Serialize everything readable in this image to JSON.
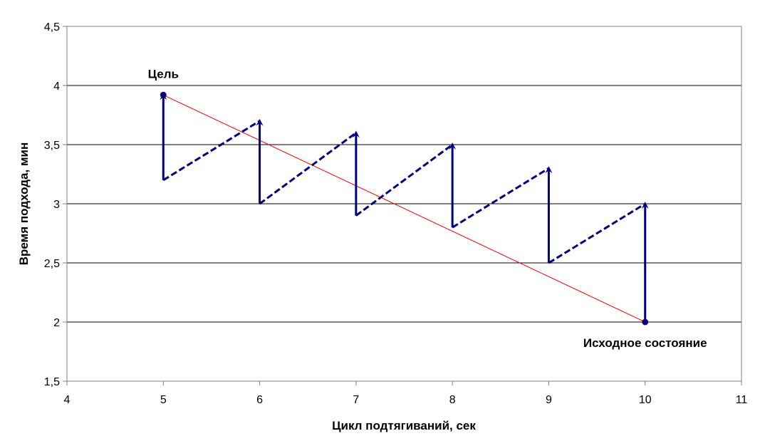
{
  "chart_data": {
    "type": "line",
    "title": "",
    "xlabel": "Цикл подтягиваний, сек",
    "ylabel": "Время подхода, мин",
    "xlim": [
      4,
      11
    ],
    "ylim": [
      1.5,
      4.5
    ],
    "x_ticks": [
      4,
      5,
      6,
      7,
      8,
      9,
      10,
      11
    ],
    "y_ticks": [
      1.5,
      2,
      2.5,
      3,
      3.5,
      4,
      4.5
    ],
    "x_tick_labels": [
      "4",
      "5",
      "6",
      "7",
      "8",
      "9",
      "10",
      "11"
    ],
    "y_tick_labels": [
      "1,5",
      "2",
      "2,5",
      "3",
      "3,5",
      "4",
      "4,5"
    ],
    "grid": "horizontal",
    "legend": "none",
    "colors": {
      "trend": "#ff0000",
      "path": "#000080",
      "grid": "#000000",
      "axis": "#808080"
    },
    "series": [
      {
        "style": "solid-thin",
        "color": "#ff0000",
        "points": [
          [
            5,
            3.92
          ],
          [
            10,
            2.0
          ]
        ]
      },
      {
        "style": "dashed",
        "color": "#000080",
        "segments": [
          [
            [
              5,
              3.2
            ],
            [
              6,
              3.7
            ]
          ],
          [
            [
              6,
              3.0
            ],
            [
              7,
              3.6
            ]
          ],
          [
            [
              7,
              2.9
            ],
            [
              8,
              3.5
            ]
          ],
          [
            [
              8,
              2.8
            ],
            [
              9,
              3.3
            ]
          ],
          [
            [
              9,
              2.5
            ],
            [
              10,
              3.0
            ]
          ]
        ]
      },
      {
        "style": "arrow",
        "color": "#000080",
        "arrows": [
          [
            [
              5,
              3.2
            ],
            [
              5,
              3.92
            ]
          ],
          [
            [
              6,
              3.0
            ],
            [
              6,
              3.7
            ]
          ],
          [
            [
              7,
              2.9
            ],
            [
              7,
              3.6
            ]
          ],
          [
            [
              8,
              2.8
            ],
            [
              8,
              3.5
            ]
          ],
          [
            [
              9,
              2.5
            ],
            [
              9,
              3.3
            ]
          ],
          [
            [
              10,
              2.0
            ],
            [
              10,
              3.0
            ]
          ]
        ]
      }
    ],
    "markers": [
      {
        "x": 5,
        "y": 3.92
      },
      {
        "x": 10,
        "y": 2.0
      }
    ],
    "annotations": [
      {
        "text": "Цель",
        "x": 5,
        "y": 3.92,
        "anchor": "above"
      },
      {
        "text": "Исходное состояние",
        "x": 10,
        "y": 2.0,
        "anchor": "below"
      }
    ]
  }
}
